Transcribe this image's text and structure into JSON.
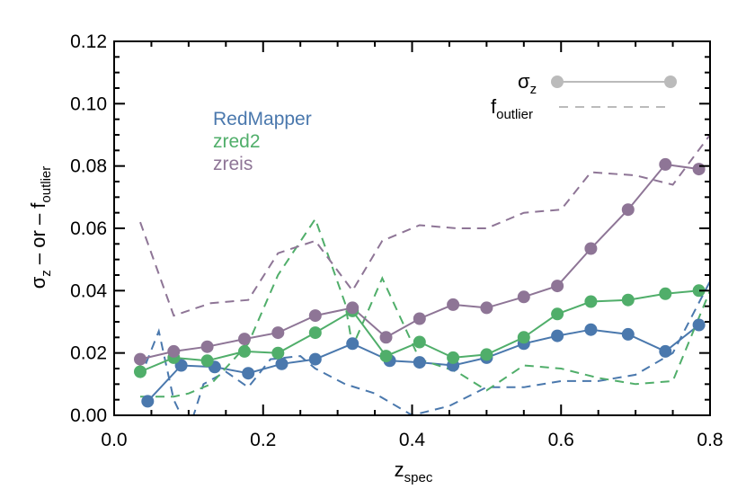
{
  "chart_data": {
    "type": "line",
    "x_axis": {
      "label_main": "z",
      "label_sub": "spec",
      "range": [
        0.0,
        0.8
      ],
      "ticks": [
        0.0,
        0.2,
        0.4,
        0.6,
        0.8
      ],
      "tick_labels": [
        "0.0",
        "0.2",
        "0.4",
        "0.6",
        "0.8"
      ]
    },
    "y_axis": {
      "label_sigma": "σ",
      "label_sigma_sub": "z",
      "label_mid": " – or – ",
      "label_f": "f",
      "label_f_sub": "outlier",
      "range": [
        0.0,
        0.12
      ],
      "ticks": [
        0.0,
        0.02,
        0.04,
        0.06,
        0.08,
        0.1,
        0.12
      ],
      "tick_labels": [
        "0.00",
        "0.02",
        "0.04",
        "0.06",
        "0.08",
        "0.10",
        "0.12"
      ]
    },
    "style_legend": {
      "sigma_label": "σ",
      "sigma_sub": "z",
      "f_label": "f",
      "f_sub": "outlier",
      "color": "#bbbbbb"
    },
    "series": [
      {
        "name": "RedMapper",
        "color": "#4a78ad",
        "sigma": {
          "x": [
            0.045,
            0.09,
            0.135,
            0.18,
            0.225,
            0.27,
            0.32,
            0.37,
            0.41,
            0.455,
            0.5,
            0.55,
            0.595,
            0.64,
            0.69,
            0.74,
            0.785
          ],
          "y": [
            0.0045,
            0.016,
            0.0155,
            0.0135,
            0.0165,
            0.018,
            0.023,
            0.0175,
            0.017,
            0.016,
            0.0185,
            0.023,
            0.0255,
            0.0275,
            0.026,
            0.0205,
            0.029
          ]
        },
        "f_outlier": {
          "x": [
            0.035,
            0.06,
            0.08,
            0.1,
            0.12,
            0.15,
            0.18,
            0.21,
            0.25,
            0.27,
            0.31,
            0.35,
            0.4,
            0.45,
            0.5,
            0.55,
            0.6,
            0.65,
            0.7,
            0.75,
            0.8
          ],
          "y": [
            0.012,
            0.027,
            0.005,
            -0.005,
            0.01,
            0.014,
            0.009,
            0.018,
            0.019,
            0.015,
            0.01,
            0.007,
            0.0,
            0.003,
            0.009,
            0.009,
            0.011,
            0.011,
            0.013,
            0.02,
            0.043
          ]
        }
      },
      {
        "name": "zred2",
        "color": "#50ae6a",
        "sigma": {
          "x": [
            0.035,
            0.08,
            0.125,
            0.175,
            0.22,
            0.27,
            0.32,
            0.365,
            0.41,
            0.455,
            0.5,
            0.55,
            0.595,
            0.64,
            0.69,
            0.74,
            0.785
          ],
          "y": [
            0.014,
            0.0185,
            0.0175,
            0.0205,
            0.02,
            0.0265,
            0.0335,
            0.019,
            0.0235,
            0.0185,
            0.0195,
            0.025,
            0.0325,
            0.0365,
            0.037,
            0.039,
            0.04
          ]
        },
        "f_outlier": {
          "x": [
            0.035,
            0.08,
            0.1,
            0.13,
            0.18,
            0.22,
            0.27,
            0.31,
            0.32,
            0.36,
            0.41,
            0.46,
            0.5,
            0.55,
            0.6,
            0.65,
            0.7,
            0.75,
            0.8
          ],
          "y": [
            0.006,
            0.006,
            0.007,
            0.01,
            0.023,
            0.045,
            0.063,
            0.036,
            0.022,
            0.044,
            0.018,
            0.014,
            0.008,
            0.016,
            0.015,
            0.012,
            0.01,
            0.011,
            0.04
          ]
        }
      },
      {
        "name": "zreis",
        "color": "#8e7596",
        "sigma": {
          "x": [
            0.035,
            0.08,
            0.125,
            0.175,
            0.22,
            0.27,
            0.32,
            0.365,
            0.41,
            0.455,
            0.5,
            0.55,
            0.595,
            0.64,
            0.69,
            0.74,
            0.785
          ],
          "y": [
            0.018,
            0.0205,
            0.022,
            0.0245,
            0.0265,
            0.032,
            0.0345,
            0.025,
            0.031,
            0.0355,
            0.0345,
            0.038,
            0.0415,
            0.0535,
            0.066,
            0.0805,
            0.079
          ]
        },
        "f_outlier": {
          "x": [
            0.035,
            0.08,
            0.13,
            0.18,
            0.22,
            0.27,
            0.32,
            0.36,
            0.41,
            0.46,
            0.5,
            0.55,
            0.6,
            0.64,
            0.7,
            0.75,
            0.8
          ],
          "y": [
            0.062,
            0.032,
            0.036,
            0.037,
            0.052,
            0.056,
            0.04,
            0.056,
            0.061,
            0.06,
            0.06,
            0.065,
            0.066,
            0.078,
            0.077,
            0.074,
            0.09
          ]
        }
      }
    ]
  }
}
